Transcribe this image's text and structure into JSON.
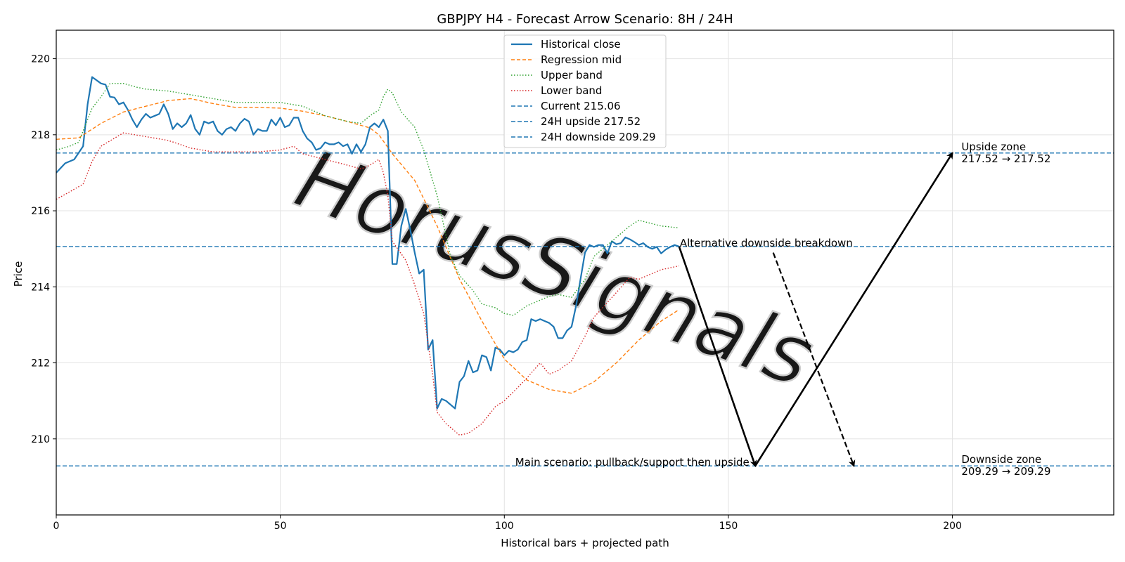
{
  "chart_data": {
    "type": "line",
    "title": "GBPJPY H4 - Forecast Arrow Scenario: 8H / 24H",
    "xlabel": "Historical bars + projected path",
    "ylabel": "Price",
    "xlim": [
      0,
      236
    ],
    "ylim": [
      208.0,
      220.75
    ],
    "x_ticks": [
      0,
      50,
      100,
      150,
      200
    ],
    "y_ticks": [
      210,
      212,
      214,
      216,
      218,
      220
    ],
    "grid": true,
    "legend_position": "top-center",
    "colors": {
      "close": "#1f77b4",
      "mid": "#ff7f0e",
      "upper": "#2ca02c",
      "lower": "#d62728",
      "hline": "#1f77b4",
      "arrow": "#000000",
      "watermark": "#c8c8c8"
    },
    "series": [
      {
        "name": "Historical close",
        "style": "solid",
        "x": [
          0,
          2,
          4,
          6,
          7,
          8,
          10,
          11,
          12,
          13,
          14,
          15,
          16,
          17,
          18,
          19,
          20,
          21,
          22,
          23,
          24,
          25,
          26,
          27,
          28,
          29,
          30,
          31,
          32,
          33,
          34,
          35,
          36,
          37,
          38,
          39,
          40,
          41,
          42,
          43,
          44,
          45,
          46,
          47,
          48,
          49,
          50,
          51,
          52,
          53,
          54,
          55,
          56,
          57,
          58,
          59,
          60,
          61,
          62,
          63,
          64,
          65,
          66,
          67,
          68,
          69,
          70,
          71,
          72,
          73,
          74,
          75,
          76,
          77,
          78,
          79,
          80,
          81,
          82,
          83,
          84,
          85,
          86,
          87,
          88,
          89,
          90,
          91,
          92,
          93,
          94,
          95,
          96,
          97,
          98,
          99,
          100,
          101,
          102,
          103,
          104,
          105,
          106,
          107,
          108,
          109,
          110,
          111,
          112,
          113,
          114,
          115,
          116,
          117,
          118,
          119,
          120,
          121,
          122,
          123,
          124,
          125,
          126,
          127,
          128,
          129,
          130,
          131,
          132,
          133,
          134,
          135,
          136,
          137,
          138,
          139
        ],
        "y": [
          217.0,
          217.25,
          217.35,
          217.7,
          218.8,
          219.52,
          219.35,
          219.32,
          219.0,
          218.98,
          218.8,
          218.85,
          218.65,
          218.4,
          218.2,
          218.4,
          218.55,
          218.45,
          218.5,
          218.55,
          218.8,
          218.55,
          218.15,
          218.3,
          218.2,
          218.3,
          218.52,
          218.15,
          218.0,
          218.35,
          218.3,
          218.35,
          218.1,
          218.0,
          218.15,
          218.2,
          218.1,
          218.3,
          218.42,
          218.35,
          218.0,
          218.15,
          218.1,
          218.1,
          218.4,
          218.25,
          218.45,
          218.2,
          218.25,
          218.45,
          218.45,
          218.1,
          217.9,
          217.8,
          217.6,
          217.65,
          217.8,
          217.75,
          217.75,
          217.8,
          217.7,
          217.75,
          217.5,
          217.75,
          217.55,
          217.75,
          218.2,
          218.3,
          218.2,
          218.4,
          218.1,
          214.6,
          214.6,
          215.6,
          216.05,
          215.5,
          214.9,
          214.35,
          214.45,
          212.35,
          212.6,
          210.8,
          211.05,
          211.0,
          210.9,
          210.8,
          211.5,
          211.65,
          212.05,
          211.75,
          211.8,
          212.2,
          212.15,
          211.8,
          212.4,
          212.35,
          212.2,
          212.32,
          212.28,
          212.35,
          212.55,
          212.6,
          213.15,
          213.1,
          213.15,
          213.1,
          213.05,
          212.95,
          212.65,
          212.65,
          212.85,
          212.95,
          213.5,
          214.2,
          214.9,
          215.1,
          215.05,
          215.1,
          215.1,
          214.88,
          215.2,
          215.12,
          215.15,
          215.3,
          215.25,
          215.18,
          215.1,
          215.15,
          215.05,
          215.0,
          215.05,
          214.88,
          214.98,
          215.05,
          215.1,
          215.06
        ]
      },
      {
        "name": "Regression mid",
        "style": "dashed",
        "x": [
          0,
          5,
          10,
          15,
          20,
          25,
          30,
          35,
          40,
          45,
          50,
          55,
          60,
          65,
          70,
          72,
          75,
          80,
          85,
          90,
          95,
          100,
          105,
          110,
          115,
          120,
          125,
          130,
          135,
          139
        ],
        "y": [
          217.88,
          217.92,
          218.3,
          218.6,
          218.75,
          218.9,
          218.95,
          218.82,
          218.72,
          218.72,
          218.7,
          218.62,
          218.5,
          218.35,
          218.18,
          218.0,
          217.5,
          216.8,
          215.6,
          214.2,
          213.1,
          212.1,
          211.55,
          211.3,
          211.2,
          211.5,
          212.0,
          212.6,
          213.1,
          213.4
        ]
      },
      {
        "name": "Upper band",
        "style": "dotted",
        "x": [
          0,
          3,
          5,
          8,
          10,
          12,
          15,
          18,
          20,
          25,
          30,
          35,
          40,
          45,
          50,
          55,
          60,
          65,
          68,
          70,
          72,
          73,
          74,
          75,
          77,
          80,
          82,
          85,
          88,
          90,
          93,
          95,
          98,
          100,
          102,
          105,
          108,
          110,
          112,
          115,
          118,
          120,
          125,
          128,
          130,
          135,
          139
        ],
        "y": [
          217.6,
          217.7,
          217.8,
          218.7,
          219.0,
          219.35,
          219.35,
          219.25,
          219.2,
          219.15,
          219.05,
          218.95,
          218.85,
          218.85,
          218.85,
          218.75,
          218.5,
          218.35,
          218.3,
          218.5,
          218.65,
          219.0,
          219.2,
          219.1,
          218.6,
          218.2,
          217.6,
          216.4,
          214.8,
          214.3,
          213.9,
          213.55,
          213.45,
          213.3,
          213.25,
          213.5,
          213.65,
          213.75,
          213.8,
          213.72,
          214.2,
          214.8,
          215.3,
          215.6,
          215.75,
          215.6,
          215.55
        ]
      },
      {
        "name": "Lower band",
        "style": "dotted",
        "x": [
          0,
          3,
          6,
          8,
          10,
          15,
          20,
          25,
          30,
          35,
          40,
          45,
          50,
          53,
          55,
          60,
          65,
          68,
          70,
          72,
          73,
          74,
          75,
          78,
          80,
          82,
          84,
          85,
          87,
          90,
          92,
          95,
          98,
          100,
          103,
          105,
          108,
          110,
          112,
          115,
          118,
          120,
          125,
          128,
          130,
          135,
          139
        ],
        "y": [
          216.3,
          216.5,
          216.7,
          217.3,
          217.7,
          218.05,
          217.95,
          217.85,
          217.65,
          217.55,
          217.55,
          217.55,
          217.6,
          217.7,
          217.5,
          217.35,
          217.2,
          217.1,
          217.2,
          217.35,
          217.0,
          216.4,
          215.2,
          214.7,
          214.05,
          213.3,
          211.7,
          210.7,
          210.4,
          210.1,
          210.15,
          210.4,
          210.85,
          211.0,
          211.35,
          211.6,
          212.0,
          211.7,
          211.8,
          212.05,
          212.7,
          213.2,
          213.85,
          214.25,
          214.2,
          214.45,
          214.55
        ]
      }
    ],
    "hlines": [
      {
        "name": "Current 215.06",
        "y": 215.06
      },
      {
        "name": "24H upside 217.52",
        "y": 217.52
      },
      {
        "name": "24H downside 209.29",
        "y": 209.29
      }
    ],
    "arrows": [
      {
        "kind": "main",
        "style": "solid",
        "from": [
          139,
          215.06
        ],
        "to": [
          156,
          209.29
        ]
      },
      {
        "kind": "main",
        "style": "solid",
        "from": [
          156,
          209.29
        ],
        "to": [
          200,
          217.52
        ]
      },
      {
        "kind": "alternative",
        "style": "dashed",
        "from": [
          160,
          214.9
        ],
        "to": [
          178,
          209.29
        ]
      }
    ],
    "annotations": [
      {
        "id": "alt",
        "text": "Alternative downside breakdown",
        "x": 139,
        "y": 215.06,
        "anchor": "start"
      },
      {
        "id": "main",
        "text": "Main scenario: pullback/support then upside",
        "x": 155,
        "y": 209.29,
        "anchor": "end"
      },
      {
        "id": "upside_title",
        "text": "Upside zone",
        "x": 202,
        "y": 217.52,
        "anchor": "start"
      },
      {
        "id": "upside_range",
        "text": "217.52 → 217.52",
        "x": 202,
        "y": 217.52,
        "anchor": "start"
      },
      {
        "id": "downside_title",
        "text": "Downside zone",
        "x": 202,
        "y": 209.29,
        "anchor": "start"
      },
      {
        "id": "downside_range",
        "text": "209.29 → 209.29",
        "x": 202,
        "y": 209.29,
        "anchor": "start"
      }
    ],
    "watermark": "HorusSignals"
  }
}
